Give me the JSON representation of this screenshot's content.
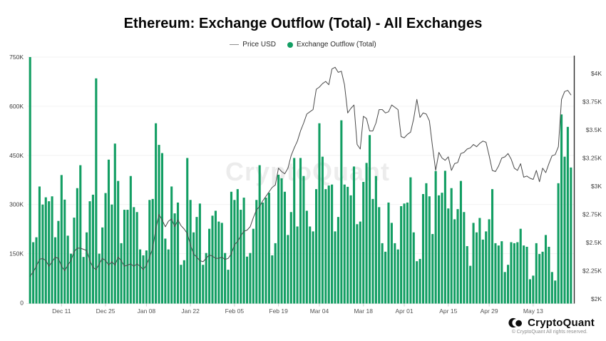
{
  "title": "Ethereum: Exchange Outflow (Total) - All Exchanges",
  "legend": {
    "price": {
      "label": "Price USD"
    },
    "outflow": {
      "label": "Exchange Outflow (Total)"
    }
  },
  "watermark": "CryptoQuant",
  "footer": {
    "brand": "CryptoQuant",
    "copyright": "© CryptoQuant All rights reserved."
  },
  "colors": {
    "bar_green": "#129e63",
    "price_line": "#4a4a4a",
    "grid": "#f2f2f2",
    "axis_line": "#2b2b2b",
    "x_axis_line": "#e8e8e8",
    "tick_label": "#3c3c3c"
  },
  "chart_data": {
    "type": "bar",
    "title": "Ethereum: Exchange Outflow (Total) - All Exchanges",
    "grid": true,
    "legend_position": "top-center",
    "left_axis": {
      "unit": "ETH (thousands)",
      "min": 0,
      "max": 750000,
      "ticks": [
        {
          "label": "750K",
          "value": 750
        },
        {
          "label": "600K",
          "value": 600
        },
        {
          "label": "450K",
          "value": 450
        },
        {
          "label": "300K",
          "value": 300
        },
        {
          "label": "150K",
          "value": 150
        },
        {
          "label": "0",
          "value": 0
        }
      ]
    },
    "right_axis": {
      "unit": "USD",
      "min": 2000,
      "max": 4160,
      "ticks": [
        {
          "label": "$4K",
          "value": 4000
        },
        {
          "label": "$3.75K",
          "value": 3750
        },
        {
          "label": "$3.5K",
          "value": 3500
        },
        {
          "label": "$3.25K",
          "value": 3250
        },
        {
          "label": "$3K",
          "value": 3000
        },
        {
          "label": "$2.75K",
          "value": 2750
        },
        {
          "label": "$2.5K",
          "value": 2500
        },
        {
          "label": "$2.25K",
          "value": 2250
        },
        {
          "label": "$2K",
          "value": 2000
        }
      ]
    },
    "x_ticks": [
      {
        "index": 10,
        "label": "Dec 11"
      },
      {
        "index": 24,
        "label": "Dec 25"
      },
      {
        "index": 37,
        "label": "Jan 08"
      },
      {
        "index": 51,
        "label": "Jan 22"
      },
      {
        "index": 65,
        "label": "Feb 05"
      },
      {
        "index": 79,
        "label": "Feb 19"
      },
      {
        "index": 92,
        "label": "Mar 04"
      },
      {
        "index": 106,
        "label": "Mar 18"
      },
      {
        "index": 119,
        "label": "Apr 01"
      },
      {
        "index": 133,
        "label": "Apr 15"
      },
      {
        "index": 146,
        "label": "Apr 29"
      },
      {
        "index": 160,
        "label": "May 13"
      }
    ],
    "series": [
      {
        "name": "Exchange Outflow (Total)",
        "type": "bar",
        "axis": "left",
        "values_unit": "thousands",
        "values": [
          750,
          185,
          200,
          355,
          300,
          322,
          310,
          325,
          200,
          250,
          390,
          315,
          205,
          150,
          260,
          350,
          420,
          140,
          215,
          310,
          330,
          685,
          150,
          230,
          335,
          437,
          300,
          486,
          372,
          182,
          284,
          284,
          387,
          292,
          277,
          163,
          145,
          160,
          314,
          317,
          548,
          482,
          457,
          196,
          163,
          355,
          273,
          306,
          116,
          130,
          442,
          314,
          215,
          262,
          303,
          116,
          152,
          226,
          266,
          281,
          248,
          244,
          152,
          101,
          339,
          314,
          347,
          284,
          321,
          141,
          152,
          226,
          314,
          420,
          306,
          321,
          336,
          145,
          182,
          391,
          380,
          339,
          207,
          277,
          442,
          233,
          442,
          387,
          281,
          233,
          218,
          347,
          548,
          446,
          347,
          358,
          361,
          218,
          262,
          557,
          361,
          354,
          328,
          416,
          240,
          248,
          369,
          427,
          512,
          317,
          387,
          292,
          182,
          156,
          306,
          244,
          182,
          163,
          295,
          303,
          306,
          383,
          215,
          127,
          134,
          332,
          365,
          325,
          210,
          402,
          328,
          336,
          403,
          288,
          350,
          255,
          286,
          372,
          277,
          173,
          113,
          244,
          215,
          259,
          193,
          218,
          255,
          347,
          182,
          175,
          188,
          94,
          116,
          185,
          182,
          185,
          226,
          175,
          171,
          72,
          83,
          182,
          149,
          156,
          207,
          171,
          94,
          68,
          365,
          575,
          446,
          537,
          413
        ]
      },
      {
        "name": "Price USD",
        "type": "line",
        "axis": "right",
        "values_unit": "USD",
        "values": [
          2200,
          2240,
          2290,
          2350,
          2360,
          2340,
          2290,
          2330,
          2370,
          2360,
          2290,
          2250,
          2300,
          2340,
          2420,
          2450,
          2450,
          2440,
          2430,
          2340,
          2280,
          2260,
          2310,
          2360,
          2340,
          2300,
          2330,
          2300,
          2370,
          2340,
          2290,
          2300,
          2310,
          2290,
          2310,
          2290,
          2260,
          2300,
          2370,
          2450,
          2620,
          2750,
          2700,
          2640,
          2690,
          2710,
          2640,
          2700,
          2650,
          2620,
          2580,
          2480,
          2400,
          2370,
          2340,
          2330,
          2360,
          2390,
          2380,
          2360,
          2360,
          2370,
          2350,
          2360,
          2400,
          2480,
          2510,
          2560,
          2600,
          2610,
          2640,
          2720,
          2790,
          2820,
          2870,
          2910,
          2950,
          2990,
          3010,
          3160,
          3130,
          3110,
          3160,
          3270,
          3340,
          3400,
          3490,
          3560,
          3640,
          3660,
          3680,
          3860,
          3880,
          3910,
          3930,
          3900,
          4040,
          4055,
          4010,
          4020,
          3900,
          3650,
          3690,
          3720,
          3370,
          3330,
          3620,
          3600,
          3490,
          3490,
          3560,
          3680,
          3680,
          3650,
          3660,
          3720,
          3700,
          3680,
          3440,
          3430,
          3460,
          3480,
          3600,
          3770,
          3610,
          3650,
          3640,
          3580,
          3350,
          3140,
          3300,
          3250,
          3230,
          3260,
          3140,
          3200,
          3210,
          3290,
          3300,
          3330,
          3340,
          3370,
          3350,
          3380,
          3400,
          3390,
          3270,
          3140,
          3130,
          3180,
          3250,
          3260,
          3290,
          3240,
          3160,
          3140,
          3200,
          3080,
          3090,
          3070,
          3060,
          3140,
          3040,
          3160,
          3120,
          3200,
          3270,
          3280,
          3350,
          3770,
          3840,
          3850,
          3810
        ]
      }
    ]
  }
}
